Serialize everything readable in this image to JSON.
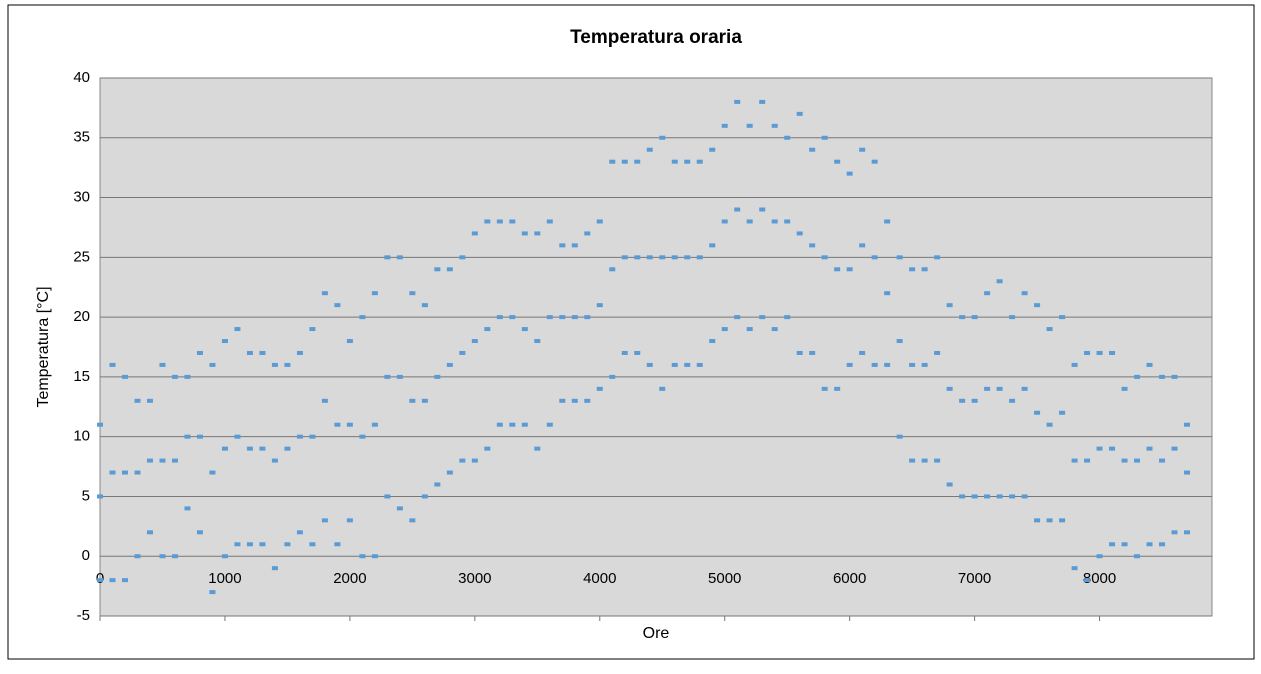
{
  "chart_data": {
    "type": "scatter",
    "title": "Temperatura oraria",
    "x_label": "Ore",
    "y_label": "Temperatura [°C]",
    "color": "#5b9bd5",
    "grid": true,
    "xlim": [
      0,
      8900
    ],
    "ylim": [
      -5,
      40
    ],
    "xticks": [
      0,
      1000,
      2000,
      3000,
      4000,
      5000,
      6000,
      7000,
      8000
    ],
    "yticks": [
      -5,
      0,
      5,
      10,
      15,
      20,
      25,
      30,
      35,
      40
    ],
    "x": [
      0,
      100,
      200,
      300,
      400,
      500,
      600,
      700,
      800,
      900,
      1000,
      1100,
      1200,
      1300,
      1400,
      1500,
      1600,
      1700,
      1800,
      1900,
      2000,
      2100,
      2200,
      2300,
      2400,
      2500,
      2600,
      2700,
      2800,
      2900,
      3000,
      3100,
      3200,
      3300,
      3400,
      3500,
      3600,
      3700,
      3800,
      3900,
      4000,
      4100,
      4200,
      4300,
      4400,
      4500,
      4600,
      4700,
      4800,
      4900,
      5000,
      5100,
      5200,
      5300,
      5400,
      5500,
      5600,
      5700,
      5800,
      5900,
      6000,
      6100,
      6200,
      6300,
      6400,
      6500,
      6600,
      6700,
      6800,
      6900,
      7000,
      7100,
      7200,
      7300,
      7400,
      7500,
      7600,
      7700,
      7800,
      7900,
      8000,
      8100,
      8200,
      8300,
      8400,
      8500,
      8600,
      8700,
      0,
      100,
      200,
      300,
      400,
      500,
      600,
      700,
      800,
      900,
      1000,
      1100,
      1200,
      1300,
      1400,
      1500,
      1600,
      1700,
      1800,
      1900,
      2000,
      2100,
      2200,
      2300,
      2400,
      2500,
      2600,
      2700,
      2800,
      2900,
      3000,
      3100,
      3200,
      3300,
      3400,
      3500,
      3600,
      3700,
      3800,
      3900,
      4000,
      4100,
      4200,
      4300,
      4400,
      4500,
      4600,
      4700,
      4800,
      4900,
      5000,
      5100,
      5200,
      5300,
      5400,
      5500,
      5600,
      5700,
      5800,
      5900,
      6000,
      6100,
      6200,
      6300,
      6400,
      6500,
      6600,
      6700,
      6800,
      6900,
      7000,
      7100,
      7200,
      7300,
      7400,
      7500,
      7600,
      7700,
      7800,
      7900,
      8000,
      8100,
      8200,
      8300,
      8400,
      8500,
      8600,
      8700,
      0,
      100,
      200,
      300,
      400,
      500,
      600,
      700,
      800,
      900,
      1000,
      1100,
      1200,
      1300,
      1400,
      1500,
      1600,
      1700,
      1800,
      1900,
      2000,
      2100,
      2200,
      2300,
      2400,
      2500,
      2600,
      2700,
      2800,
      2900,
      3000,
      3100,
      3200,
      3300,
      3400,
      3500,
      3600,
      3700,
      3800,
      3900,
      4000,
      4100,
      4200,
      4300,
      4400,
      4500,
      4600,
      4700,
      4800,
      4900,
      5000,
      5100,
      5200,
      5300,
      5400,
      5500,
      5600,
      5700,
      5800,
      5900,
      6000,
      6100,
      6200,
      6300,
      6400,
      6500,
      6600,
      6700,
      6800,
      6900,
      7000,
      7100,
      7200,
      7300,
      7400,
      7500,
      7600,
      7700,
      7800,
      7900,
      8000,
      8100,
      8200,
      8300,
      8400,
      8500,
      8600,
      8700
    ],
    "values": [
      -2,
      -2,
      -2,
      0,
      2,
      0,
      0,
      4,
      2,
      -3,
      0,
      1,
      1,
      1,
      -1,
      1,
      2,
      1,
      3,
      1,
      3,
      0,
      0,
      5,
      4,
      3,
      5,
      6,
      7,
      8,
      8,
      9,
      11,
      11,
      11,
      9,
      11,
      13,
      13,
      13,
      14,
      15,
      17,
      17,
      16,
      14,
      16,
      16,
      16,
      18,
      19,
      20,
      19,
      20,
      19,
      20,
      17,
      17,
      14,
      14,
      16,
      17,
      16,
      16,
      10,
      8,
      8,
      8,
      6,
      5,
      5,
      5,
      5,
      5,
      5,
      3,
      3,
      3,
      -1,
      -2,
      0,
      1,
      1,
      0,
      1,
      1,
      2,
      2,
      11,
      16,
      15,
      13,
      13,
      16,
      15,
      15,
      17,
      16,
      18,
      19,
      17,
      17,
      16,
      16,
      17,
      19,
      22,
      21,
      18,
      20,
      22,
      25,
      25,
      22,
      21,
      24,
      24,
      25,
      27,
      28,
      28,
      28,
      27,
      27,
      28,
      26,
      26,
      27,
      28,
      33,
      33,
      33,
      34,
      35,
      33,
      33,
      33,
      34,
      36,
      38,
      36,
      38,
      36,
      35,
      37,
      34,
      35,
      33,
      32,
      34,
      33,
      28,
      25,
      24,
      24,
      25,
      21,
      20,
      20,
      22,
      23,
      20,
      22,
      21,
      19,
      20,
      16,
      17,
      17,
      17,
      14,
      15,
      16,
      15,
      15,
      11,
      5,
      7,
      7,
      7,
      8,
      8,
      8,
      10,
      10,
      7,
      9,
      10,
      9,
      9,
      8,
      9,
      10,
      10,
      13,
      11,
      11,
      10,
      11,
      15,
      15,
      13,
      13,
      15,
      16,
      17,
      18,
      19,
      20,
      20,
      19,
      18,
      20,
      20,
      20,
      20,
      21,
      24,
      25,
      25,
      25,
      25,
      25,
      25,
      25,
      26,
      28,
      29,
      28,
      29,
      28,
      28,
      27,
      26,
      25,
      24,
      24,
      26,
      25,
      22,
      18,
      16,
      16,
      17,
      14,
      13,
      13,
      14,
      14,
      13,
      14,
      12,
      11,
      12,
      8,
      8,
      9,
      9,
      8,
      8,
      9,
      8,
      9,
      7
    ]
  }
}
